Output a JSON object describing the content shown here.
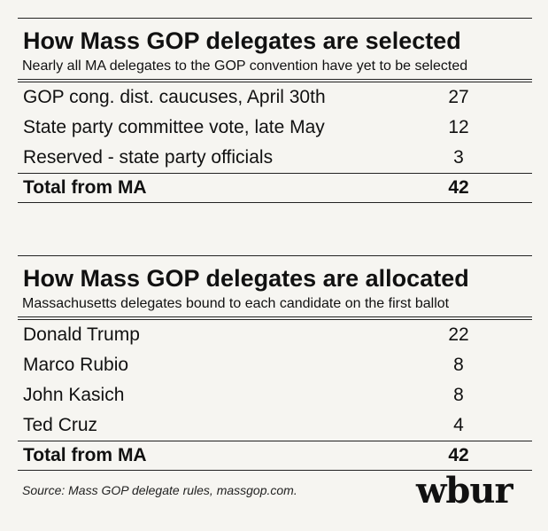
{
  "selected": {
    "title": "How Mass GOP delegates are selected",
    "subtitle": "Nearly all MA delegates to the GOP convention have yet to be selected",
    "rows": [
      {
        "label": "GOP cong. dist. caucuses, April 30th",
        "value": "27"
      },
      {
        "label": "State party committee vote, late May",
        "value": "12"
      },
      {
        "label": "Reserved - state party officials",
        "value": "3"
      }
    ],
    "total": {
      "label": "Total from MA",
      "value": "42"
    }
  },
  "allocated": {
    "title": "How Mass GOP delegates are allocated",
    "subtitle": "Massachusetts delegates bound to each candidate on the first ballot",
    "rows": [
      {
        "label": "Donald Trump",
        "value": "22"
      },
      {
        "label": "Marco Rubio",
        "value": "8"
      },
      {
        "label": "John Kasich",
        "value": "8"
      },
      {
        "label": "Ted Cruz",
        "value": "4"
      }
    ],
    "total": {
      "label": "Total from MA",
      "value": "42"
    }
  },
  "footer": {
    "source": "Source: Mass GOP delegate rules, massgop.com.",
    "logo": "wbur"
  }
}
